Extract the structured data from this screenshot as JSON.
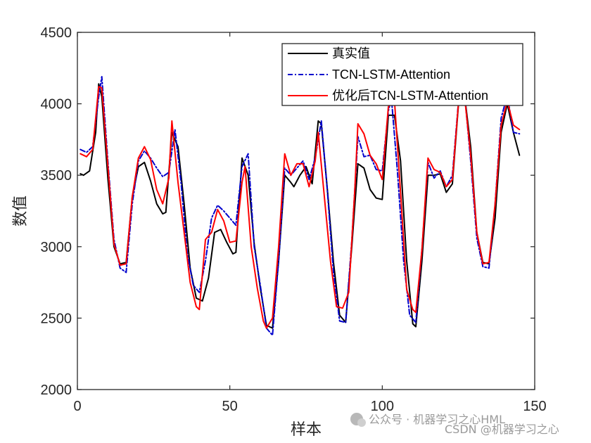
{
  "chart_data": {
    "type": "line",
    "title": "",
    "xlabel": "样本",
    "ylabel": "数值",
    "xlim": [
      0,
      150
    ],
    "ylim": [
      2000,
      4500
    ],
    "x_ticks": [
      0,
      50,
      100,
      150
    ],
    "y_ticks": [
      2000,
      2500,
      3000,
      3500,
      4000,
      4500
    ],
    "grid": false,
    "legend_position": "top-right",
    "series": [
      {
        "name": "真实值",
        "color": "#000000",
        "style": "solid",
        "points": [
          [
            1,
            3510
          ],
          [
            2,
            3500
          ],
          [
            4,
            3530
          ],
          [
            6,
            3800
          ],
          [
            7,
            4140
          ],
          [
            8,
            4050
          ],
          [
            10,
            3480
          ],
          [
            12,
            3000
          ],
          [
            14,
            2880
          ],
          [
            16,
            2890
          ],
          [
            18,
            3350
          ],
          [
            20,
            3560
          ],
          [
            22,
            3590
          ],
          [
            24,
            3460
          ],
          [
            26,
            3300
          ],
          [
            28,
            3230
          ],
          [
            29,
            3240
          ],
          [
            31,
            3800
          ],
          [
            33,
            3700
          ],
          [
            35,
            3300
          ],
          [
            37,
            2850
          ],
          [
            39,
            2640
          ],
          [
            41,
            2620
          ],
          [
            43,
            2780
          ],
          [
            45,
            3100
          ],
          [
            47,
            3120
          ],
          [
            49,
            3030
          ],
          [
            51,
            2950
          ],
          [
            52,
            2960
          ],
          [
            54,
            3620
          ],
          [
            56,
            3500
          ],
          [
            58,
            3020
          ],
          [
            60,
            2710
          ],
          [
            62,
            2450
          ],
          [
            64,
            2430
          ],
          [
            66,
            2900
          ],
          [
            68,
            3500
          ],
          [
            70,
            3450
          ],
          [
            71,
            3420
          ],
          [
            73,
            3500
          ],
          [
            75,
            3560
          ],
          [
            77,
            3440
          ],
          [
            79,
            3880
          ],
          [
            80,
            3860
          ],
          [
            82,
            3400
          ],
          [
            84,
            2890
          ],
          [
            86,
            2520
          ],
          [
            88,
            2470
          ],
          [
            90,
            3000
          ],
          [
            92,
            3580
          ],
          [
            94,
            3550
          ],
          [
            96,
            3400
          ],
          [
            98,
            3340
          ],
          [
            100,
            3330
          ],
          [
            102,
            3920
          ],
          [
            104,
            3920
          ],
          [
            106,
            3600
          ],
          [
            108,
            2900
          ],
          [
            110,
            2460
          ],
          [
            111,
            2440
          ],
          [
            113,
            2900
          ],
          [
            115,
            3500
          ],
          [
            117,
            3500
          ],
          [
            119,
            3510
          ],
          [
            121,
            3380
          ],
          [
            123,
            3440
          ],
          [
            125,
            4000
          ],
          [
            127,
            4060
          ],
          [
            129,
            3700
          ],
          [
            131,
            3100
          ],
          [
            133,
            2890
          ],
          [
            135,
            2880
          ],
          [
            137,
            3200
          ],
          [
            139,
            3800
          ],
          [
            141,
            4000
          ],
          [
            143,
            3800
          ],
          [
            145,
            3640
          ]
        ]
      },
      {
        "name": "TCN-LSTM-Attention",
        "color": "#0000cc",
        "style": "dashdot",
        "points": [
          [
            1,
            3680
          ],
          [
            3,
            3660
          ],
          [
            5,
            3700
          ],
          [
            7,
            4050
          ],
          [
            8,
            4190
          ],
          [
            10,
            3600
          ],
          [
            12,
            3050
          ],
          [
            14,
            2850
          ],
          [
            16,
            2820
          ],
          [
            18,
            3300
          ],
          [
            20,
            3600
          ],
          [
            22,
            3670
          ],
          [
            24,
            3620
          ],
          [
            26,
            3550
          ],
          [
            28,
            3490
          ],
          [
            30,
            3520
          ],
          [
            32,
            3820
          ],
          [
            34,
            3450
          ],
          [
            36,
            2960
          ],
          [
            38,
            2730
          ],
          [
            40,
            2680
          ],
          [
            42,
            2900
          ],
          [
            44,
            3200
          ],
          [
            46,
            3290
          ],
          [
            48,
            3250
          ],
          [
            50,
            3200
          ],
          [
            52,
            3150
          ],
          [
            54,
            3560
          ],
          [
            56,
            3650
          ],
          [
            58,
            3000
          ],
          [
            60,
            2730
          ],
          [
            62,
            2430
          ],
          [
            64,
            2380
          ],
          [
            66,
            2900
          ],
          [
            68,
            3550
          ],
          [
            70,
            3500
          ],
          [
            72,
            3550
          ],
          [
            74,
            3600
          ],
          [
            76,
            3470
          ],
          [
            78,
            3620
          ],
          [
            80,
            3880
          ],
          [
            82,
            3390
          ],
          [
            84,
            2820
          ],
          [
            86,
            2480
          ],
          [
            88,
            2470
          ],
          [
            90,
            3040
          ],
          [
            92,
            3770
          ],
          [
            94,
            3630
          ],
          [
            96,
            3640
          ],
          [
            98,
            3540
          ],
          [
            100,
            3530
          ],
          [
            102,
            3950
          ],
          [
            103,
            4040
          ],
          [
            105,
            3520
          ],
          [
            107,
            2900
          ],
          [
            109,
            2520
          ],
          [
            111,
            2470
          ],
          [
            113,
            2980
          ],
          [
            115,
            3590
          ],
          [
            117,
            3480
          ],
          [
            119,
            3530
          ],
          [
            121,
            3420
          ],
          [
            123,
            3500
          ],
          [
            125,
            4020
          ],
          [
            127,
            4070
          ],
          [
            129,
            3600
          ],
          [
            131,
            3060
          ],
          [
            133,
            2860
          ],
          [
            135,
            2850
          ],
          [
            137,
            3300
          ],
          [
            139,
            3900
          ],
          [
            141,
            4060
          ],
          [
            143,
            3800
          ],
          [
            145,
            3790
          ]
        ]
      },
      {
        "name": "优化后TCN-LSTM-Attention",
        "color": "#ff0000",
        "style": "solid",
        "points": [
          [
            1,
            3650
          ],
          [
            3,
            3630
          ],
          [
            5,
            3680
          ],
          [
            7,
            4120
          ],
          [
            8,
            4110
          ],
          [
            10,
            3570
          ],
          [
            12,
            3020
          ],
          [
            14,
            2870
          ],
          [
            16,
            2880
          ],
          [
            18,
            3350
          ],
          [
            20,
            3620
          ],
          [
            22,
            3700
          ],
          [
            24,
            3610
          ],
          [
            26,
            3400
          ],
          [
            28,
            3300
          ],
          [
            30,
            3480
          ],
          [
            31,
            3880
          ],
          [
            33,
            3450
          ],
          [
            35,
            3100
          ],
          [
            37,
            2750
          ],
          [
            39,
            2580
          ],
          [
            40,
            2560
          ],
          [
            42,
            3050
          ],
          [
            44,
            3100
          ],
          [
            46,
            3260
          ],
          [
            48,
            3180
          ],
          [
            50,
            3030
          ],
          [
            52,
            3040
          ],
          [
            54,
            3450
          ],
          [
            55,
            3560
          ],
          [
            57,
            3000
          ],
          [
            59,
            2710
          ],
          [
            61,
            2480
          ],
          [
            62,
            2430
          ],
          [
            64,
            2500
          ],
          [
            66,
            3000
          ],
          [
            68,
            3650
          ],
          [
            70,
            3500
          ],
          [
            72,
            3580
          ],
          [
            74,
            3580
          ],
          [
            76,
            3420
          ],
          [
            78,
            3600
          ],
          [
            79,
            3800
          ],
          [
            81,
            3350
          ],
          [
            83,
            2900
          ],
          [
            85,
            2580
          ],
          [
            87,
            2570
          ],
          [
            89,
            2680
          ],
          [
            91,
            3400
          ],
          [
            92,
            3860
          ],
          [
            94,
            3790
          ],
          [
            96,
            3640
          ],
          [
            98,
            3580
          ],
          [
            100,
            3470
          ],
          [
            102,
            3980
          ],
          [
            104,
            4020
          ],
          [
            106,
            3380
          ],
          [
            108,
            2700
          ],
          [
            110,
            2560
          ],
          [
            111,
            2540
          ],
          [
            113,
            2980
          ],
          [
            115,
            3620
          ],
          [
            117,
            3540
          ],
          [
            119,
            3520
          ],
          [
            121,
            3420
          ],
          [
            123,
            3470
          ],
          [
            125,
            4010
          ],
          [
            127,
            4050
          ],
          [
            129,
            3640
          ],
          [
            131,
            3100
          ],
          [
            133,
            2880
          ],
          [
            135,
            2890
          ],
          [
            137,
            3300
          ],
          [
            139,
            3850
          ],
          [
            141,
            4020
          ],
          [
            143,
            3850
          ],
          [
            145,
            3820
          ]
        ]
      }
    ]
  },
  "watermark": {
    "line1": "公众号 · 机器学习之心HML",
    "line2": "CSDN @机器学习之心"
  }
}
